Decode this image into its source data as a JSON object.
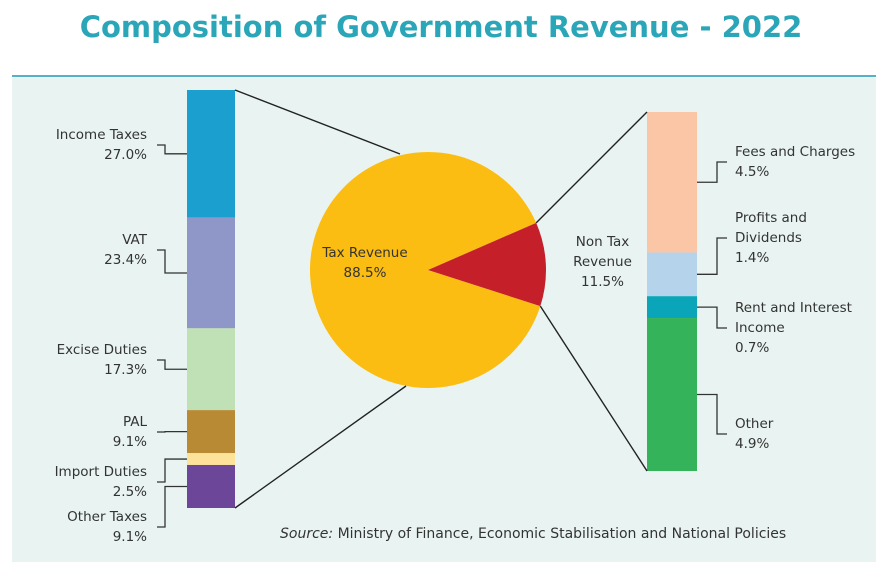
{
  "chart_data": {
    "type": "pie",
    "title": "Composition of Government Revenue - 2022",
    "source_label": "Source:",
    "source": "Ministry of Finance, Economic Stabilisation and National Policies",
    "pie": {
      "categories": [
        "Tax Revenue",
        "Non Tax Revenue"
      ],
      "values": [
        88.5,
        11.5
      ],
      "value_labels": [
        "88.5%",
        "11.5%"
      ],
      "colors": [
        "#fbbd12",
        "#c5202a"
      ]
    },
    "breakdowns": [
      {
        "categories": [
          "Income Taxes",
          "VAT",
          "Excise Duties",
          "PAL",
          "Import Duties",
          "Other Taxes"
        ],
        "values": [
          27.0,
          23.4,
          17.3,
          9.1,
          2.5,
          9.1
        ],
        "value_labels": [
          "27.0%",
          "23.4%",
          "17.3%",
          "9.1%",
          "2.5%",
          "9.1%"
        ],
        "colors": [
          "#1a9fcf",
          "#8f97c9",
          "#c0e0b5",
          "#b98a34",
          "#fde29a",
          "#6c4799"
        ]
      },
      {
        "categories": [
          "Fees and Charges",
          "Profits and Dividends",
          "Rent and Interest Income",
          "Other"
        ],
        "values": [
          4.5,
          1.4,
          0.7,
          4.9
        ],
        "value_labels": [
          "4.5%",
          "1.4%",
          "0.7%",
          "4.9%"
        ],
        "colors": [
          "#fbc6a6",
          "#b6d3ec",
          "#0aa5b8",
          "#34b35a"
        ]
      }
    ]
  }
}
